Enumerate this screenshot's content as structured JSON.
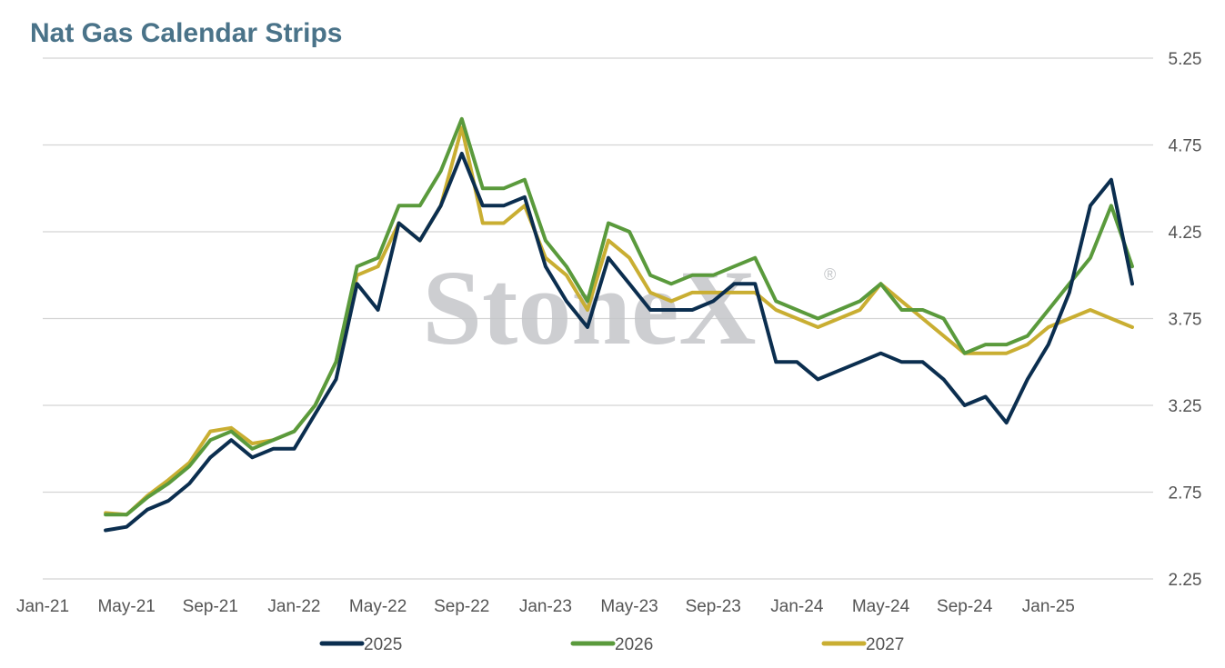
{
  "chart_data": {
    "type": "line",
    "title": "Nat Gas Calendar Strips",
    "watermark": "StoneX",
    "watermark_mark": "®",
    "ylim": [
      2.25,
      5.25
    ],
    "y_ticks": [
      "5.25",
      "4.75",
      "4.25",
      "3.75",
      "3.25",
      "2.75",
      "2.25"
    ],
    "y_tick_values": [
      5.25,
      4.75,
      4.25,
      3.75,
      3.25,
      2.75,
      2.25
    ],
    "xlim": [
      "2021-01",
      "2025-06"
    ],
    "x_ticks": [
      "Jan-21",
      "May-21",
      "Sep-21",
      "Jan-22",
      "May-22",
      "Sep-22",
      "Jan-23",
      "May-23",
      "Sep-23",
      "Jan-24",
      "May-24",
      "Sep-24",
      "Jan-25"
    ],
    "x_tick_dates": [
      "2021-01",
      "2021-05",
      "2021-09",
      "2022-01",
      "2022-05",
      "2022-09",
      "2023-01",
      "2023-05",
      "2023-09",
      "2024-01",
      "2024-05",
      "2024-09",
      "2025-01"
    ],
    "grid": "horizontal",
    "legend_position": "bottom",
    "x": [
      "2021-04",
      "2021-05",
      "2021-06",
      "2021-07",
      "2021-08",
      "2021-09",
      "2021-10",
      "2021-11",
      "2021-12",
      "2022-01",
      "2022-02",
      "2022-03",
      "2022-04",
      "2022-05",
      "2022-06",
      "2022-07",
      "2022-08",
      "2022-09",
      "2022-10",
      "2022-11",
      "2022-12",
      "2023-01",
      "2023-02",
      "2023-03",
      "2023-04",
      "2023-05",
      "2023-06",
      "2023-07",
      "2023-08",
      "2023-09",
      "2023-10",
      "2023-11",
      "2023-12",
      "2024-01",
      "2024-02",
      "2024-03",
      "2024-04",
      "2024-05",
      "2024-06",
      "2024-07",
      "2024-08",
      "2024-09",
      "2024-10",
      "2024-11",
      "2024-12",
      "2025-01",
      "2025-02",
      "2025-03",
      "2025-04",
      "2025-05"
    ],
    "series": [
      {
        "name": "2025",
        "color": "#0b2e4f",
        "values": [
          2.53,
          2.55,
          2.65,
          2.7,
          2.8,
          2.95,
          3.05,
          2.95,
          3.0,
          3.0,
          3.2,
          3.4,
          3.95,
          3.8,
          4.3,
          4.2,
          4.4,
          4.7,
          4.4,
          4.4,
          4.45,
          4.05,
          3.85,
          3.7,
          4.1,
          3.95,
          3.8,
          3.8,
          3.8,
          3.85,
          3.95,
          3.95,
          3.5,
          3.5,
          3.4,
          3.45,
          3.5,
          3.55,
          3.5,
          3.5,
          3.4,
          3.25,
          3.3,
          3.15,
          3.4,
          3.6,
          3.9,
          4.4,
          4.55,
          3.95
        ]
      },
      {
        "name": "2026",
        "color": "#5a9a3c",
        "values": [
          2.62,
          2.62,
          2.72,
          2.8,
          2.9,
          3.05,
          3.1,
          3.0,
          3.05,
          3.1,
          3.25,
          3.5,
          4.05,
          4.1,
          4.4,
          4.4,
          4.6,
          4.9,
          4.5,
          4.5,
          4.55,
          4.2,
          4.05,
          3.85,
          4.3,
          4.25,
          4.0,
          3.95,
          4.0,
          4.0,
          4.05,
          4.1,
          3.85,
          3.8,
          3.75,
          3.8,
          3.85,
          3.95,
          3.8,
          3.8,
          3.75,
          3.55,
          3.6,
          3.6,
          3.65,
          3.8,
          3.95,
          4.1,
          4.4,
          4.05
        ]
      },
      {
        "name": "2027",
        "color": "#c9ae32",
        "values": [
          2.63,
          2.62,
          2.73,
          2.82,
          2.92,
          3.1,
          3.12,
          3.03,
          3.05,
          3.1,
          3.25,
          3.5,
          4.0,
          4.05,
          4.3,
          4.2,
          4.4,
          4.85,
          4.3,
          4.3,
          4.4,
          4.1,
          4.0,
          3.8,
          4.2,
          4.1,
          3.9,
          3.85,
          3.9,
          3.9,
          3.9,
          3.9,
          3.8,
          3.75,
          3.7,
          3.75,
          3.8,
          3.95,
          3.85,
          3.75,
          3.65,
          3.55,
          3.55,
          3.55,
          3.6,
          3.7,
          3.75,
          3.8,
          3.75,
          3.7
        ]
      }
    ]
  }
}
